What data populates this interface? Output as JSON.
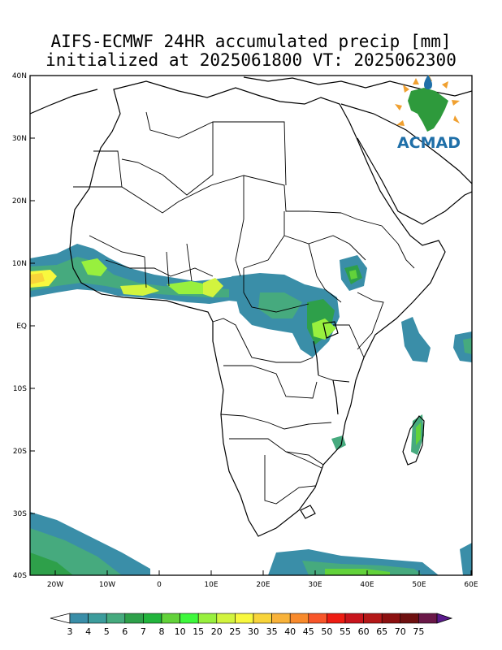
{
  "title": {
    "line1": "AIFS-ECMWF 24HR accumulated precip [mm]",
    "line2": "initialized at 2025061800 VT: 2025062300"
  },
  "logo": {
    "text": "ACMAD"
  },
  "axes": {
    "lat_labels": [
      "40N",
      "30N",
      "20N",
      "10N",
      "EQ",
      "10S",
      "20S",
      "30S",
      "40S"
    ],
    "lon_labels": [
      "20W",
      "10W",
      "0",
      "10E",
      "20E",
      "30E",
      "40E",
      "50E",
      "60E"
    ]
  },
  "colorbar": {
    "labels": [
      "3",
      "4",
      "5",
      "6",
      "7",
      "8",
      "10",
      "15",
      "20",
      "25",
      "30",
      "35",
      "40",
      "45",
      "50",
      "55",
      "60",
      "65",
      "70",
      "75"
    ],
    "colors": [
      "#3a8ea8",
      "#3c9c9c",
      "#46aa7e",
      "#2ea04a",
      "#22b43c",
      "#62d23a",
      "#3ef83c",
      "#98f03e",
      "#d2f43e",
      "#f8f83e",
      "#f8d43a",
      "#f8b23a",
      "#f88a2c",
      "#f8562a",
      "#ee1c12",
      "#c8141c",
      "#b41818",
      "#8c1010",
      "#6e1010",
      "#6a1848"
    ],
    "under_color": "#ffffff",
    "over_color": "#5a1a8c"
  }
}
